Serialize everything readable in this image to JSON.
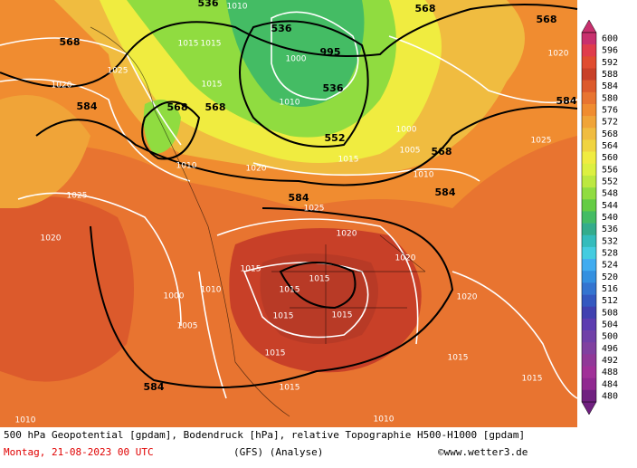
{
  "map": {
    "contour_labels": [
      "536",
      "568",
      "568",
      "568",
      "536",
      "536",
      "568",
      "568",
      "584",
      "584",
      "552",
      "568",
      "584",
      "584",
      "584",
      "1010",
      "1015",
      "1015",
      "1025",
      "1020",
      "1015",
      "1010",
      "1000",
      "995",
      "1000",
      "1005",
      "1010",
      "1015",
      "1020",
      "1025",
      "1025",
      "1020",
      "1020",
      "1020",
      "1015",
      "1015",
      "1015",
      "1015",
      "1015",
      "1010",
      "1005",
      "1000",
      "1015",
      "1015",
      "1015",
      "1020",
      "1010",
      "1010",
      "1015",
      "1025",
      "1020",
      "1010"
    ],
    "legend": {
      "values": [
        600,
        596,
        592,
        588,
        584,
        580,
        576,
        572,
        568,
        564,
        560,
        556,
        552,
        548,
        544,
        540,
        536,
        532,
        528,
        524,
        520,
        516,
        512,
        508,
        504,
        500,
        496,
        492,
        488,
        484,
        480
      ],
      "colors": [
        "#c8306e",
        "#e03c4c",
        "#e04c30",
        "#c84028",
        "#dc5a2c",
        "#e87430",
        "#f08c30",
        "#f0a438",
        "#f0bc40",
        "#f0d440",
        "#f0ec40",
        "#dcf040",
        "#bce840",
        "#90dc40",
        "#64cc44",
        "#44bc64",
        "#34ac8c",
        "#34bcbc",
        "#44cce0",
        "#40acf0",
        "#3490e0",
        "#3474d0",
        "#3458c0",
        "#4040b0",
        "#5c3cb0",
        "#7040a8",
        "#8040a0",
        "#903898",
        "#a03098",
        "#902890",
        "#702080"
      ]
    },
    "caption": "500 hPa Geopotential [gpdam], Bodendruck [hPa], relative Topographie H500-H1000 [gpdam]",
    "date": "Montag, 21-08-2023  00 UTC",
    "model": "(GFS)  (Analyse)",
    "credit": "©www.wetter3.de"
  }
}
